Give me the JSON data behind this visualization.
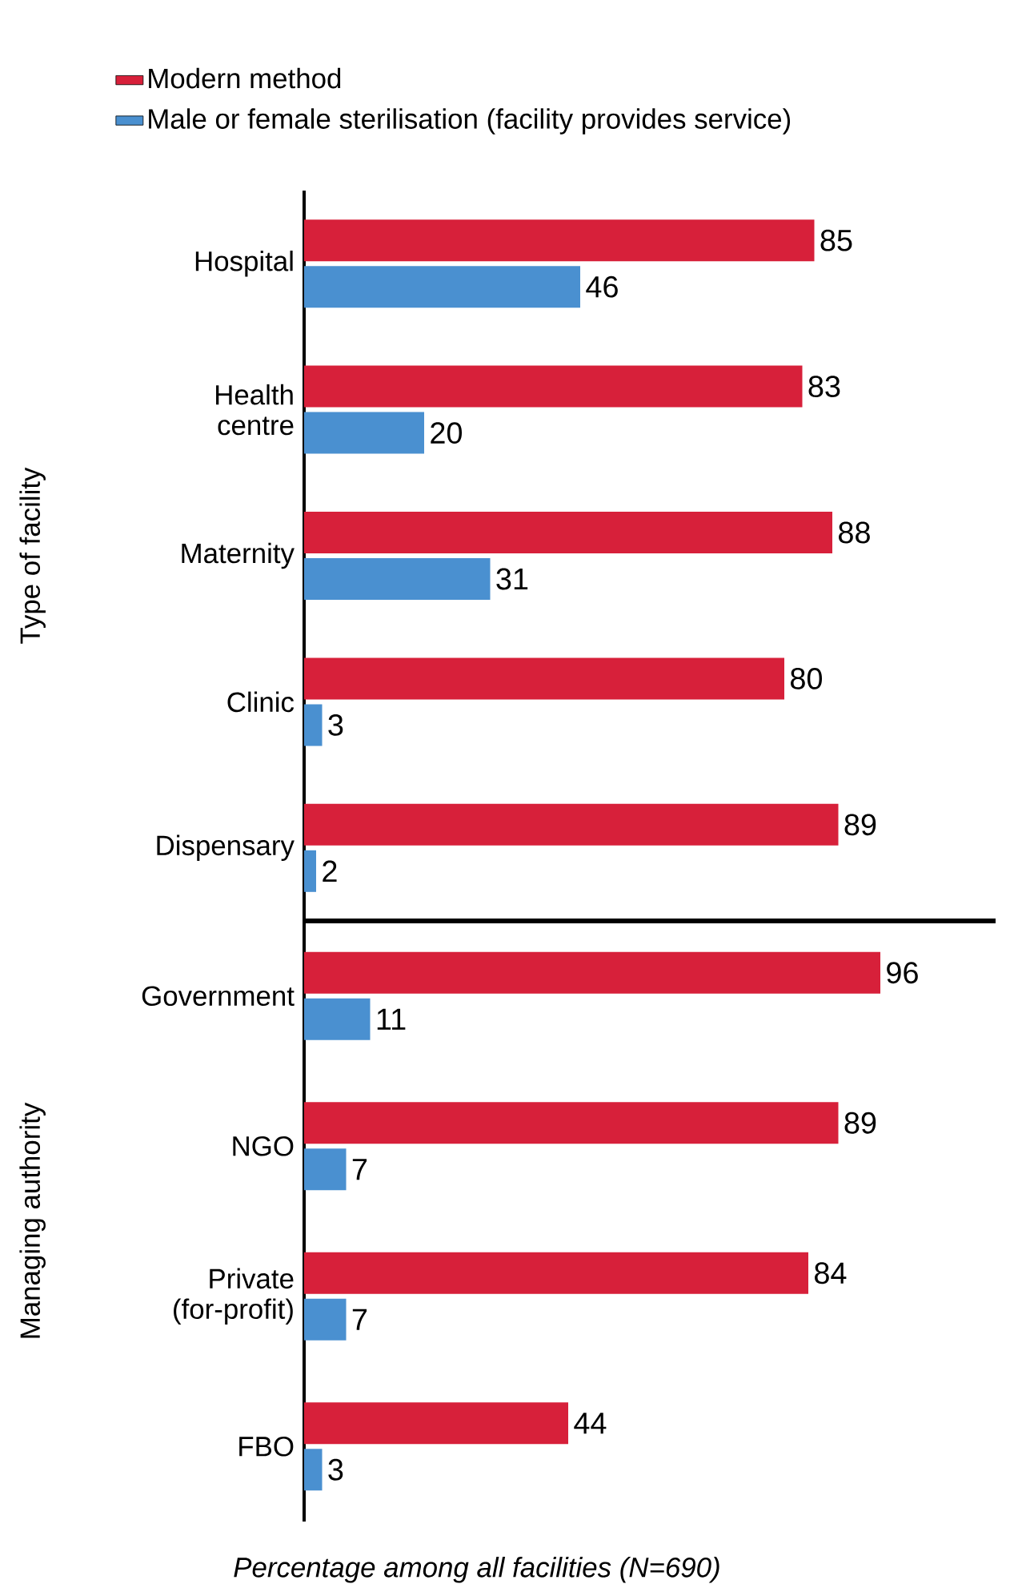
{
  "chart_data": [
    {
      "type": "bar",
      "orientation": "horizontal",
      "ylabel": "Type of facility",
      "categories": [
        "Hospital",
        "Health centre",
        "Maternity",
        "Clinic",
        "Dispensary"
      ],
      "series": [
        {
          "name": "Modern method",
          "color": "#d7203a",
          "values": [
            85,
            83,
            88,
            80,
            89
          ]
        },
        {
          "name": "Male or female sterilisation (facility provides service)",
          "color": "#4a90d0",
          "values": [
            46,
            20,
            31,
            3,
            2
          ]
        }
      ],
      "data_labels": true,
      "legend": "top"
    },
    {
      "type": "bar",
      "orientation": "horizontal",
      "ylabel": "Managing authority",
      "xlabel": "Percentage among all facilities (N=690)",
      "categories": [
        "Government",
        "NGO",
        "Private (for-profit)",
        "FBO"
      ],
      "series": [
        {
          "color": "#d7203a",
          "values": [
            96,
            89,
            84,
            44
          ]
        },
        {
          "color": "#4a90d0",
          "values": [
            11,
            7,
            7,
            3
          ]
        }
      ],
      "data_labels": true
    }
  ]
}
